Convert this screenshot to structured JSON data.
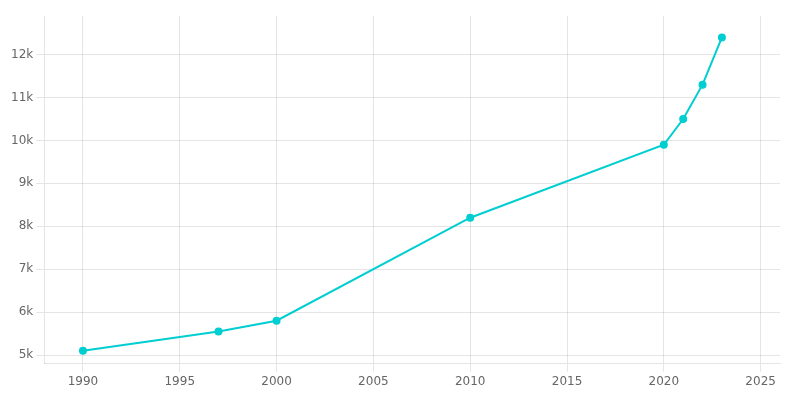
{
  "chart_data": {
    "type": "line",
    "x": [
      1990,
      1997,
      2000,
      2010,
      2020,
      2021,
      2022,
      2023
    ],
    "values": [
      5100,
      5550,
      5800,
      8200,
      9900,
      10500,
      11300,
      12400
    ],
    "color": "#00CED1",
    "marker": "circle",
    "xlim": [
      1988,
      2026
    ],
    "ylim": [
      4800,
      12900
    ],
    "xticks": [
      1990,
      1995,
      2000,
      2005,
      2010,
      2015,
      2020,
      2025
    ],
    "yticks": [
      {
        "value": 5000,
        "label": "5k"
      },
      {
        "value": 6000,
        "label": "6k"
      },
      {
        "value": 7000,
        "label": "7k"
      },
      {
        "value": 8000,
        "label": "8k"
      },
      {
        "value": 9000,
        "label": "9k"
      },
      {
        "value": 10000,
        "label": "10k"
      },
      {
        "value": 11000,
        "label": "11k"
      },
      {
        "value": 12000,
        "label": "12k"
      }
    ],
    "grid": true
  }
}
